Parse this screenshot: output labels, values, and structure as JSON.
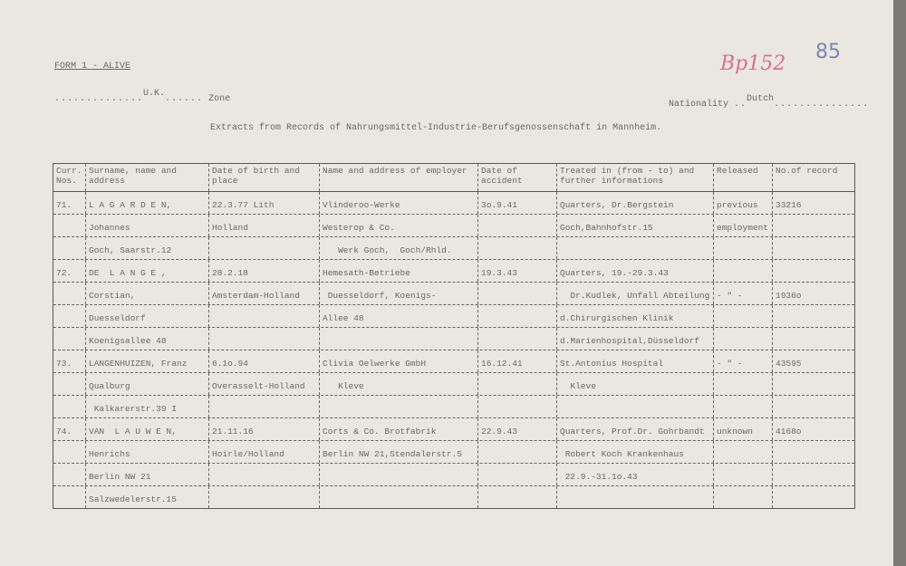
{
  "form_label": "FORM 1 - ALIVE",
  "annotations": {
    "archive_number": "Bp152",
    "page_number": "85"
  },
  "zone": {
    "value": "U.K.",
    "label": "Zone"
  },
  "nationality": {
    "label": "Nationality",
    "value": "Dutch"
  },
  "title": "Extracts from Records of Nahrungsmittel-Industrie-Berufsgenossenschaft in Mannheim.",
  "table": {
    "headers": [
      "Curr. Nos.",
      "Surname, name and address",
      "Date of birth and place",
      "Name and address of employer",
      "Date of accident",
      "Treated in (from - to) and further informations",
      "Released",
      "No.of record"
    ],
    "rows": [
      [
        "71.",
        "L A G A R D E N,",
        "22.3.77 Lith",
        "Vlinderoo-Werke",
        "3o.9.41",
        "Quarters, Dr.Bergstein",
        "previous",
        "33216"
      ],
      [
        "",
        "Johannes",
        "Holland",
        "Westerop & Co.",
        "",
        "Goch,Bahnhofstr.15",
        "employment",
        ""
      ],
      [
        "",
        "Goch, Saarstr.12",
        "",
        "   Werk Goch,  Goch/Rhld.",
        "",
        "",
        "",
        ""
      ],
      [
        "72.",
        "DE  L A N G E ,",
        "28.2.18",
        "Hemesath-Betriebe",
        "19.3.43",
        "Quarters, 19.-29.3.43",
        "",
        ""
      ],
      [
        "",
        "Corstian,",
        "Amsterdam-Holland",
        " Duesseldorf, Koenigs-",
        "",
        "  Dr.Kudlek, Unfall Abteilung",
        "- \" -",
        "1936o"
      ],
      [
        "",
        "Duesseldorf",
        "",
        "Allee 48",
        "",
        "d.Chirurgischen Klinik",
        "",
        ""
      ],
      [
        "",
        "Koenigsallee 48",
        "",
        "",
        "",
        "d.Marienhospital,Düsseldorf",
        "",
        ""
      ],
      [
        "73.",
        "LANGENHUIZEN, Franz",
        "6.1o.94",
        "Clivia Oelwerke GmbH",
        "16.12.41",
        "St.Antonius Hospital",
        "- \" -",
        "43595"
      ],
      [
        "",
        "Qualburg",
        "Overasselt-Holland",
        "   Kleve",
        "",
        "  Kleve",
        "",
        ""
      ],
      [
        "",
        " Kalkarerstr.39 I",
        "",
        "",
        "",
        "",
        "",
        ""
      ],
      [
        "74.",
        "VAN  L A U W E N,",
        "21.11.16",
        "Corts & Co. Brotfabrik",
        "22.9.43",
        "Quarters, Prof.Dr. Gohrbandt",
        "unknown",
        "4168o"
      ],
      [
        "",
        "Henrichs",
        "Hoirle/Holland",
        "Berlin NW 21,Stendalerstr.5",
        "",
        " Robert Koch Krankenhaus",
        "",
        ""
      ],
      [
        "",
        "Berlin NW 21",
        "",
        "",
        "",
        " 22.9.-31.1o.43",
        "",
        ""
      ],
      [
        "",
        "Salzwedelerstr.15",
        "",
        "",
        "",
        "",
        "",
        ""
      ]
    ]
  }
}
